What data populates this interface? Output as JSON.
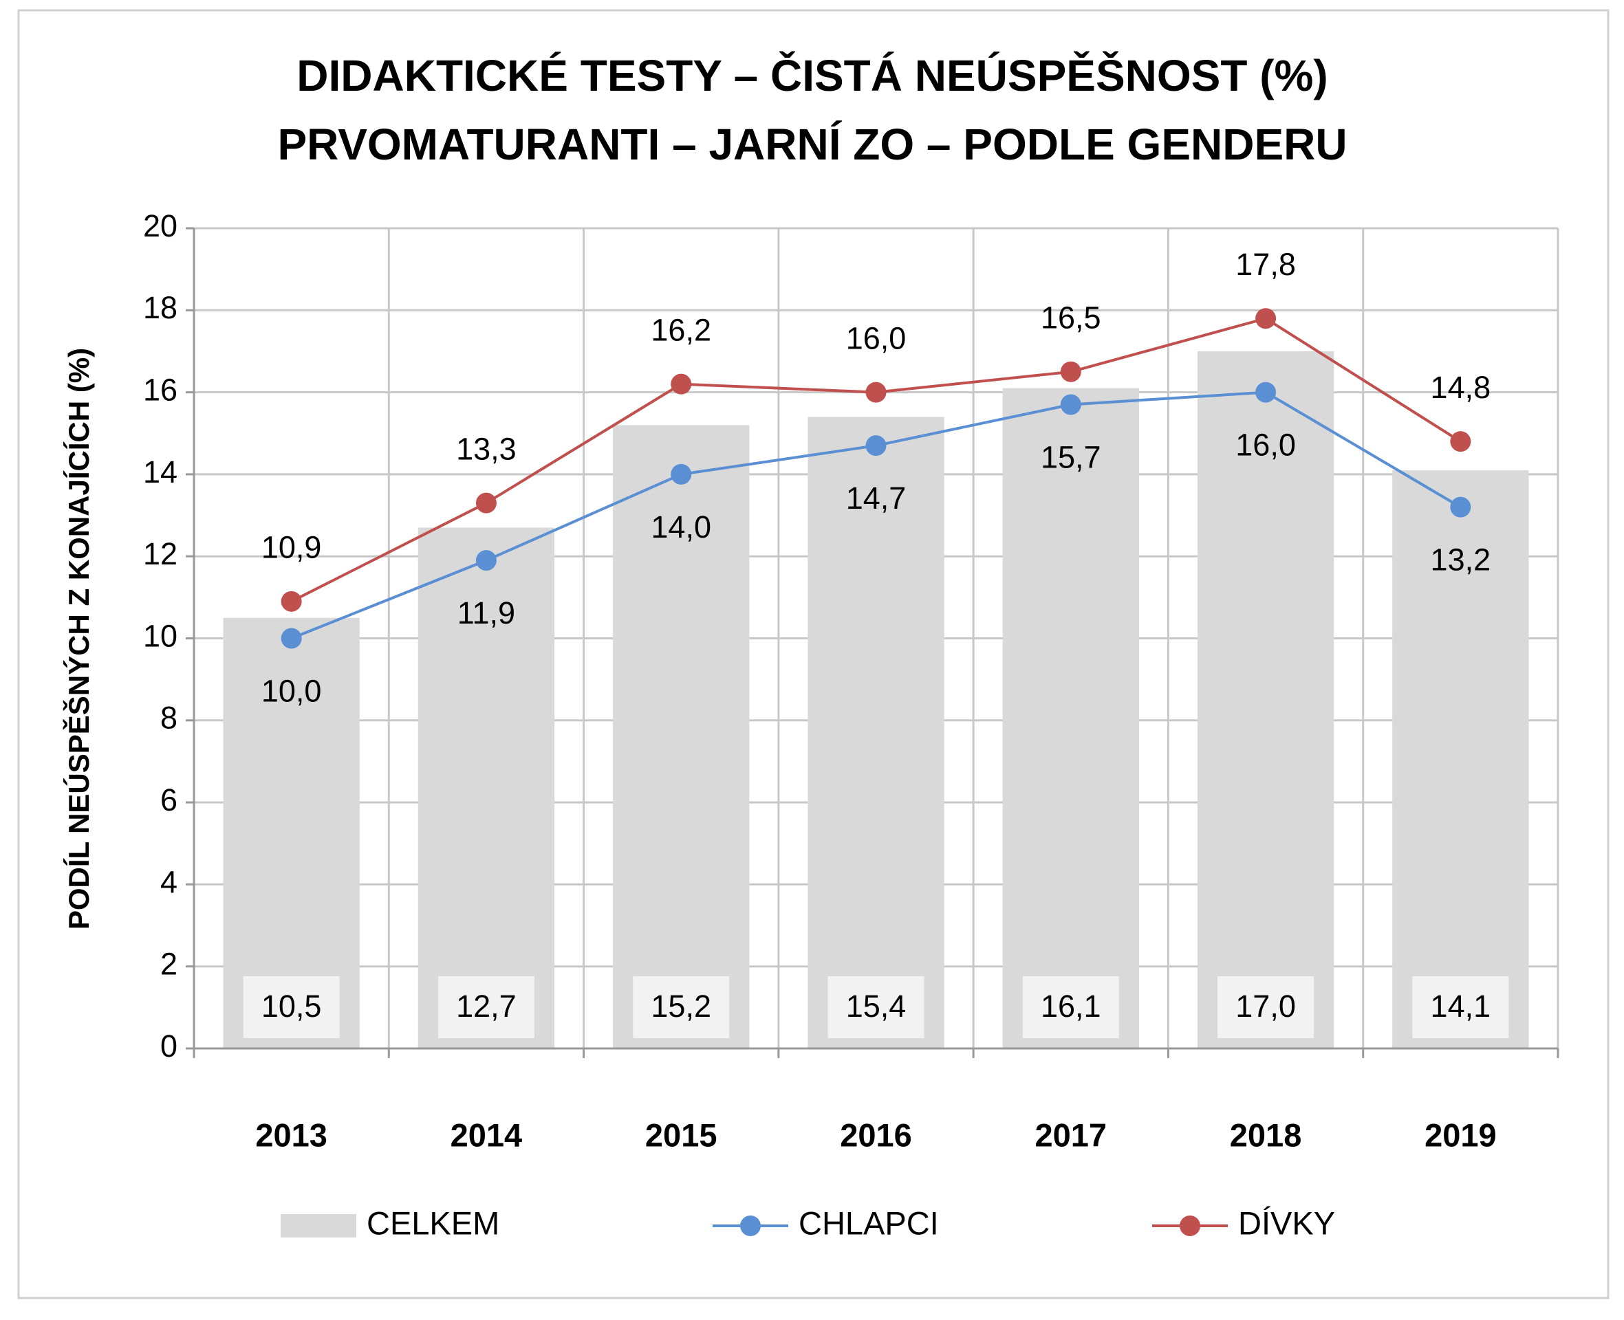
{
  "chart_data": {
    "type": "bar",
    "title": [
      "DIDAKTICKÉ TESTY – ČISTÁ NEÚSPĚŠNOST (%)",
      "PRVOMATURANTI – JARNÍ ZO – PODLE GENDERU"
    ],
    "y_label": "PODÍL NEÚSPĚŠNÝCH Z KONAJÍCÍCH (%)",
    "categories": [
      "2013",
      "2014",
      "2015",
      "2016",
      "2017",
      "2018",
      "2019"
    ],
    "ylim": [
      0,
      20
    ],
    "yticks": [
      0,
      2,
      4,
      6,
      8,
      10,
      12,
      14,
      16,
      18,
      20
    ],
    "grid": true,
    "legend": "bottom",
    "series": [
      {
        "name": "CELKEM",
        "type": "bar",
        "color": "#d9d9d9",
        "values": [
          10.5,
          12.7,
          15.2,
          15.4,
          16.1,
          17.0,
          14.1
        ],
        "value_labels": [
          "10,5",
          "12,7",
          "15,2",
          "15,4",
          "16,1",
          "17,0",
          "14,1"
        ]
      },
      {
        "name": "CHLAPCI",
        "type": "line",
        "color": "#5b8fd4",
        "values": [
          10.0,
          11.9,
          14.0,
          14.7,
          15.7,
          16.0,
          13.2
        ],
        "value_labels": [
          "10,0",
          "11,9",
          "14,0",
          "14,7",
          "15,7",
          "16,0",
          "13,2"
        ]
      },
      {
        "name": "DÍVKY",
        "type": "line",
        "color": "#c0504d",
        "values": [
          10.9,
          13.3,
          16.2,
          16.0,
          16.5,
          17.8,
          14.8
        ],
        "value_labels": [
          "10,9",
          "13,3",
          "16,2",
          "16,0",
          "16,5",
          "17,8",
          "14,8"
        ]
      }
    ]
  }
}
